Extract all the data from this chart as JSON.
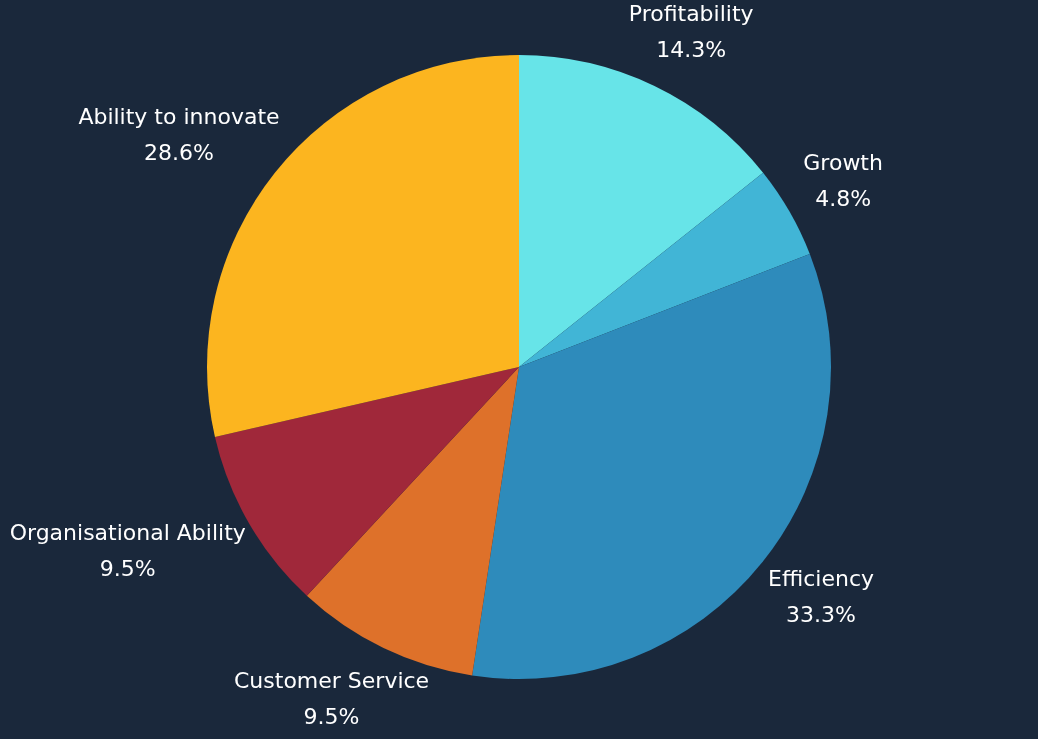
{
  "chart_data": {
    "type": "pie",
    "categories": [
      "Profitability",
      "Growth",
      "Efficiency",
      "Customer Service",
      "Organisational Ability",
      "Ability to innovate"
    ],
    "values": [
      14.3,
      4.8,
      33.3,
      9.5,
      9.5,
      28.6
    ],
    "colors": [
      "#67e4e8",
      "#41b5d6",
      "#2e8bbb",
      "#de712a",
      "#a0283a",
      "#fcb51f"
    ],
    "value_labels": [
      "14.3%",
      "4.8%",
      "33.3%",
      "9.5%",
      "9.5%",
      "28.6%"
    ],
    "legend": false
  }
}
